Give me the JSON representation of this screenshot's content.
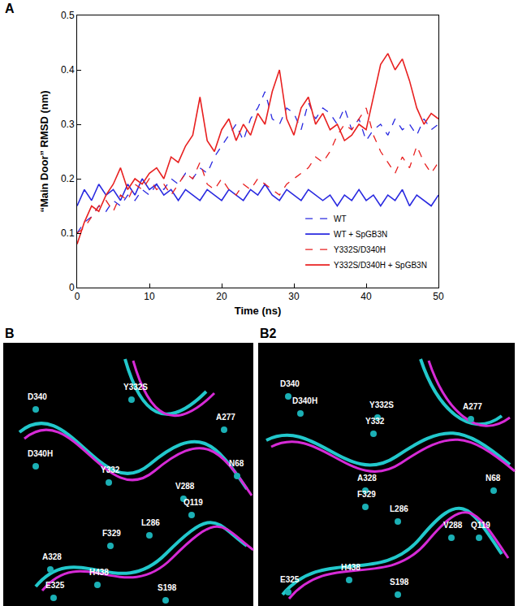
{
  "chart_data": {
    "type": "line",
    "panel": "A",
    "xlabel": "Time (ns)",
    "ylabel": "“Main Door” RMSD (nm)",
    "x": [
      0,
      1,
      2,
      3,
      4,
      5,
      6,
      7,
      8,
      9,
      10,
      11,
      12,
      13,
      14,
      15,
      16,
      17,
      18,
      19,
      20,
      21,
      22,
      23,
      24,
      25,
      26,
      27,
      28,
      29,
      30,
      31,
      32,
      33,
      34,
      35,
      36,
      37,
      38,
      39,
      40,
      41,
      42,
      43,
      44,
      45,
      46,
      47,
      48,
      49,
      50
    ],
    "xlim": [
      0,
      50
    ],
    "xticks": [
      0,
      10,
      20,
      30,
      40,
      50
    ],
    "ylim": [
      0,
      0.5
    ],
    "yticks": [
      0,
      0.1,
      0.2,
      0.3,
      0.4,
      0.5
    ],
    "grid": false,
    "legend": "lower right",
    "series": [
      {
        "name": "WT",
        "color": "#2a2ae0",
        "line_style": "dashed",
        "values": [
          0.1,
          0.12,
          0.13,
          0.15,
          0.14,
          0.16,
          0.15,
          0.17,
          0.16,
          0.18,
          0.17,
          0.19,
          0.18,
          0.2,
          0.19,
          0.21,
          0.2,
          0.22,
          0.21,
          0.24,
          0.26,
          0.28,
          0.3,
          0.27,
          0.31,
          0.33,
          0.36,
          0.31,
          0.3,
          0.33,
          0.32,
          0.29,
          0.34,
          0.31,
          0.33,
          0.32,
          0.3,
          0.33,
          0.29,
          0.31,
          0.27,
          0.29,
          0.3,
          0.28,
          0.31,
          0.29,
          0.3,
          0.28,
          0.31,
          0.29,
          0.3
        ]
      },
      {
        "name": "WT + SpGB3N",
        "color": "#2a2ae0",
        "line_style": "solid",
        "values": [
          0.15,
          0.18,
          0.16,
          0.19,
          0.17,
          0.18,
          0.16,
          0.19,
          0.17,
          0.2,
          0.18,
          0.19,
          0.17,
          0.18,
          0.16,
          0.18,
          0.17,
          0.16,
          0.18,
          0.17,
          0.16,
          0.18,
          0.17,
          0.16,
          0.18,
          0.17,
          0.19,
          0.17,
          0.16,
          0.18,
          0.17,
          0.16,
          0.18,
          0.17,
          0.16,
          0.17,
          0.15,
          0.17,
          0.16,
          0.18,
          0.16,
          0.17,
          0.15,
          0.17,
          0.16,
          0.18,
          0.15,
          0.17,
          0.16,
          0.15,
          0.17
        ]
      },
      {
        "name": "Y332S/D340H",
        "color": "#e82020",
        "line_style": "dashed",
        "values": [
          0.1,
          0.11,
          0.13,
          0.15,
          0.16,
          0.14,
          0.17,
          0.16,
          0.19,
          0.18,
          0.2,
          0.18,
          0.19,
          0.17,
          0.19,
          0.21,
          0.2,
          0.23,
          0.19,
          0.18,
          0.2,
          0.18,
          0.17,
          0.19,
          0.18,
          0.2,
          0.19,
          0.18,
          0.17,
          0.19,
          0.2,
          0.21,
          0.22,
          0.24,
          0.23,
          0.25,
          0.28,
          0.3,
          0.29,
          0.31,
          0.33,
          0.28,
          0.25,
          0.23,
          0.21,
          0.24,
          0.22,
          0.26,
          0.23,
          0.21,
          0.23
        ]
      },
      {
        "name": "Y332S/D340H + SpGB3N",
        "color": "#e82020",
        "line_style": "solid",
        "values": [
          0.08,
          0.12,
          0.15,
          0.14,
          0.17,
          0.19,
          0.22,
          0.18,
          0.2,
          0.19,
          0.21,
          0.22,
          0.2,
          0.24,
          0.23,
          0.26,
          0.28,
          0.35,
          0.27,
          0.25,
          0.29,
          0.31,
          0.27,
          0.3,
          0.28,
          0.32,
          0.3,
          0.36,
          0.4,
          0.31,
          0.28,
          0.33,
          0.35,
          0.3,
          0.32,
          0.29,
          0.3,
          0.27,
          0.28,
          0.3,
          0.29,
          0.35,
          0.41,
          0.43,
          0.4,
          0.42,
          0.38,
          0.33,
          0.3,
          0.32,
          0.31
        ]
      }
    ]
  },
  "image_panels": [
    {
      "label": "B",
      "residues": [
        "D340",
        "Y332S",
        "D340H",
        "Y332",
        "A277",
        "N68",
        "V288",
        "Q119",
        "L286",
        "F329",
        "A328",
        "E325",
        "H438",
        "S198"
      ]
    },
    {
      "label": "B2",
      "residues": [
        "D340",
        "D340H",
        "Y332S",
        "Y332",
        "A277",
        "A328",
        "F329",
        "L286",
        "N68",
        "V288",
        "Q119",
        "E325",
        "H438",
        "S198"
      ]
    }
  ]
}
